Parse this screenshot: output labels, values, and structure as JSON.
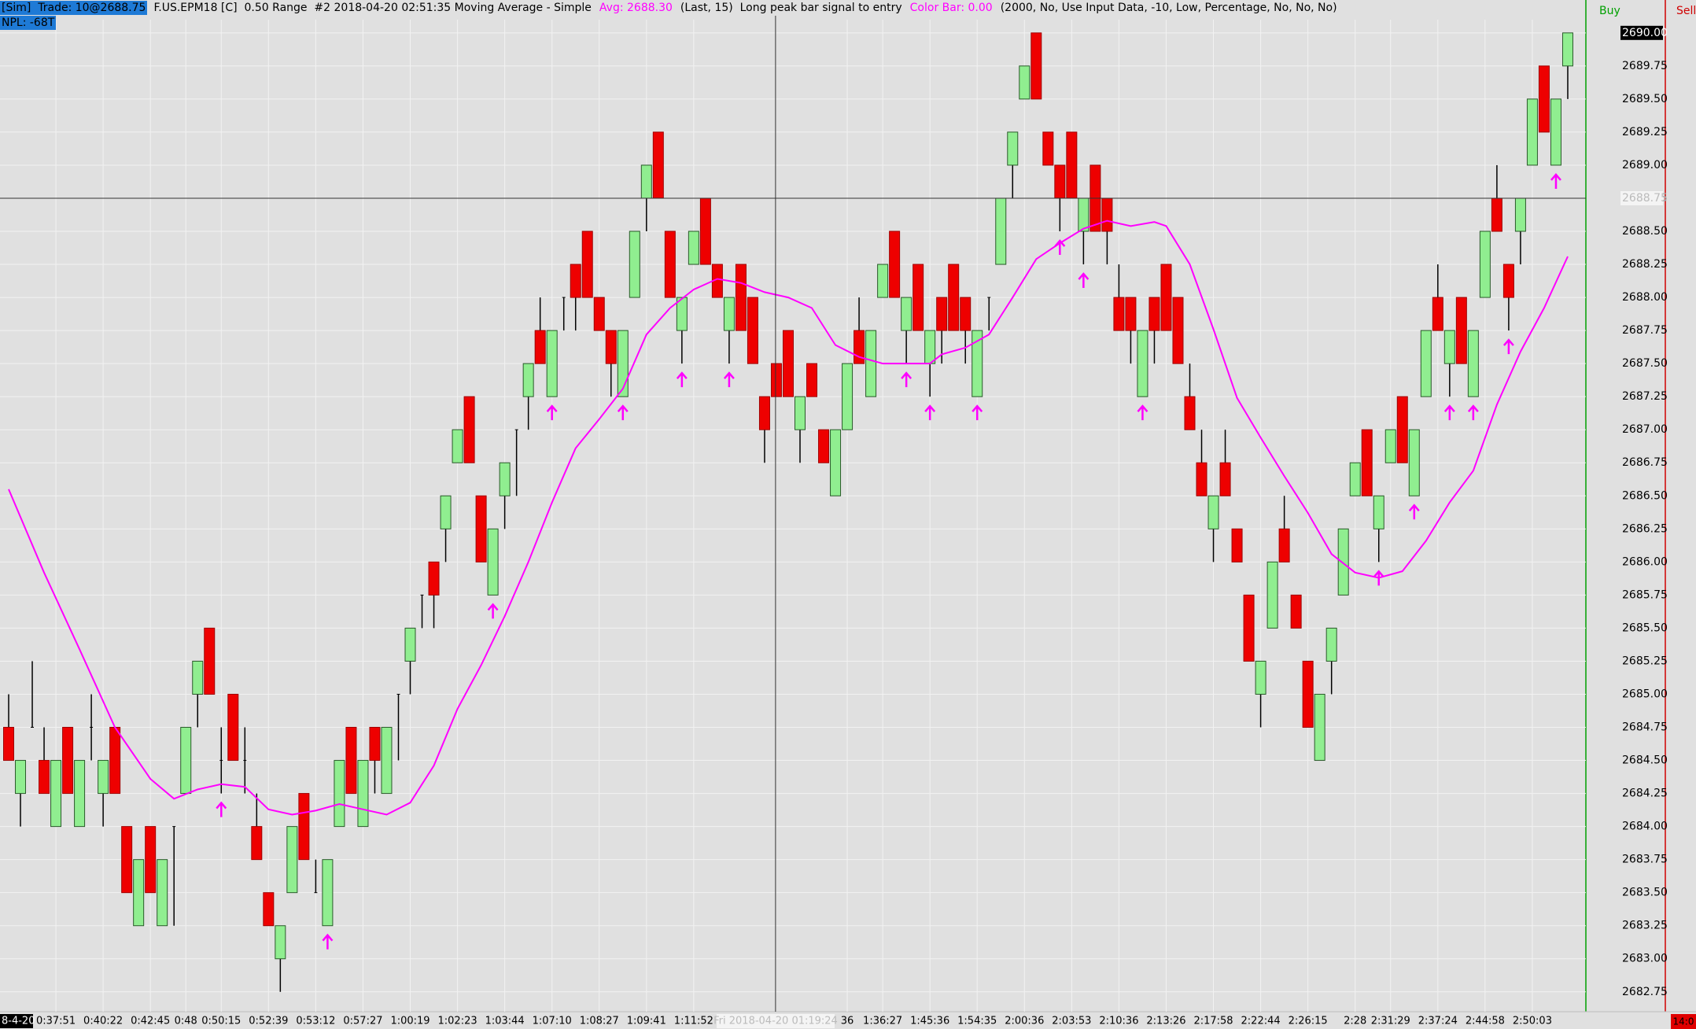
{
  "header": {
    "sim_trade": "[Sim]  Trade: 10@2688.75",
    "symbol": "F.US.EPM18 [C]  0.50 Range  #2 2018-04-20 02:51:35 Moving Average - Simple",
    "avg": "Avg: 2688.30",
    "study": "(Last, 15)  Long peak bar signal to entry",
    "color_bar": "Color Bar: 0.00",
    "params": "(2000, No, Use Input Data, -10, Low, Percentage, No, No, No)",
    "npl": "NPL: -68T",
    "buy": "Buy",
    "sell": "Sell",
    "corner": "14:0"
  },
  "chart_data": {
    "type": "candlestick",
    "ylim": [
      2682.6,
      2690.1
    ],
    "yticks": [
      {
        "value": 2690,
        "label": "2690.00"
      },
      {
        "value": 2689.75,
        "label": "2689.75"
      },
      {
        "value": 2689.5,
        "label": "2689.50"
      },
      {
        "value": 2689.25,
        "label": "2689.25"
      },
      {
        "value": 2689,
        "label": "2689.00"
      },
      {
        "value": 2688.75,
        "label": "2688.75"
      },
      {
        "value": 2688.5,
        "label": "2688.50"
      },
      {
        "value": 2688.25,
        "label": "2688.25"
      },
      {
        "value": 2688,
        "label": "2688.00"
      },
      {
        "value": 2687.75,
        "label": "2687.75"
      },
      {
        "value": 2687.5,
        "label": "2687.50"
      },
      {
        "value": 2687.25,
        "label": "2687.25"
      },
      {
        "value": 2687,
        "label": "2687.00"
      },
      {
        "value": 2686.75,
        "label": "2686.75"
      },
      {
        "value": 2686.5,
        "label": "2686.50"
      },
      {
        "value": 2686.25,
        "label": "2686.25"
      },
      {
        "value": 2686,
        "label": "2686.00"
      },
      {
        "value": 2685.75,
        "label": "2685.75"
      },
      {
        "value": 2685.5,
        "label": "2685.50"
      },
      {
        "value": 2685.25,
        "label": "2685.25"
      },
      {
        "value": 2685,
        "label": "2685.00"
      },
      {
        "value": 2684.75,
        "label": "2684.75"
      },
      {
        "value": 2684.5,
        "label": "2684.50"
      },
      {
        "value": 2684.25,
        "label": "2684.25"
      },
      {
        "value": 2684,
        "label": "2684.00"
      },
      {
        "value": 2683.75,
        "label": "2683.75"
      },
      {
        "value": 2683.5,
        "label": "2683.50"
      },
      {
        "value": 2683.25,
        "label": "2683.25"
      },
      {
        "value": 2683,
        "label": "2683.00"
      },
      {
        "value": 2682.75,
        "label": "2682.75"
      }
    ],
    "grid": true,
    "up_color": "#90ee90",
    "down_color": "#ee0000",
    "ma_color": "#ff00ff",
    "signal_color": "#ff00ff",
    "categories": [
      "8-4-20",
      null,
      null,
      null,
      "0:37:51",
      null,
      null,
      null,
      "0:40:22",
      null,
      null,
      null,
      "0:42:45",
      null,
      null,
      "0:48",
      null,
      null,
      "0:50:15",
      null,
      null,
      null,
      "0:52:39",
      null,
      null,
      null,
      "0:53:12",
      null,
      null,
      null,
      "0:57:27",
      null,
      null,
      null,
      "1:00:19",
      null,
      null,
      null,
      "1:02:23",
      null,
      null,
      null,
      "1:03:44",
      null,
      null,
      null,
      "1:07:10",
      null,
      null,
      null,
      "1:08:27",
      null,
      null,
      null,
      "1:09:41",
      null,
      null,
      null,
      "1:11:52",
      null,
      null,
      null,
      null,
      null,
      null,
      null,
      null,
      null,
      null,
      null,
      null,
      "36",
      null,
      null,
      "1:36:27",
      null,
      null,
      null,
      "1:45:36",
      null,
      null,
      null,
      "1:54:35",
      null,
      null,
      null,
      "2:00:36",
      null,
      null,
      null,
      "2:03:53",
      null,
      null,
      null,
      "2:10:36",
      null,
      null,
      null,
      "2:13:26",
      null,
      null,
      null,
      "2:17:58",
      null,
      null,
      null,
      "2:22:44",
      null,
      null,
      null,
      "2:26:15",
      null,
      null,
      null,
      "2:28",
      null,
      null,
      "2:31:29",
      null,
      null,
      null,
      "2:37:24",
      null,
      null,
      null,
      "2:44:58",
      null,
      null,
      null,
      "2:50:03",
      null,
      null,
      null
    ],
    "candles": [
      [
        2684.75,
        2685,
        2684.5,
        2684.5
      ],
      [
        2684.25,
        2684.5,
        2684,
        2684.5
      ],
      [
        2684.75,
        2685.25,
        2684.75,
        2684.75
      ],
      [
        2684.5,
        2684.75,
        2684.25,
        2684.25
      ],
      [
        2684,
        2684.5,
        2684,
        2684.5
      ],
      [
        2684.75,
        2684.75,
        2684.25,
        2684.25
      ],
      [
        2684,
        2684.5,
        2684,
        2684.5
      ],
      [
        2684.75,
        2685,
        2684.5,
        2684.75
      ],
      [
        2684.25,
        2684.5,
        2684,
        2684.5
      ],
      [
        2684.75,
        2684.75,
        2684.25,
        2684.25
      ],
      [
        2684,
        2684,
        2683.5,
        2683.5
      ],
      [
        2683.25,
        2683.75,
        2683.25,
        2683.75
      ],
      [
        2684,
        2684,
        2683.5,
        2683.5
      ],
      [
        2683.25,
        2683.75,
        2683.25,
        2683.75
      ],
      [
        2684,
        2684,
        2683.25,
        2684
      ],
      [
        2684.25,
        2684.75,
        2684.25,
        2684.75
      ],
      [
        2685,
        2685.25,
        2684.75,
        2685.25
      ],
      [
        2685.5,
        2685.5,
        2685,
        2685
      ],
      [
        2684.5,
        2684.75,
        2684.25,
        2684.5
      ],
      [
        2685,
        2685,
        2684.5,
        2684.5
      ],
      [
        2684.5,
        2684.75,
        2684.25,
        2684.5
      ],
      [
        2684,
        2684.25,
        2683.75,
        2683.75
      ],
      [
        2683.5,
        2683.5,
        2683.25,
        2683.25
      ],
      [
        2683,
        2683.25,
        2682.75,
        2683.25
      ],
      [
        2683.5,
        2684,
        2683.5,
        2684
      ],
      [
        2684.25,
        2684.25,
        2683.75,
        2683.75
      ],
      [
        2683.5,
        2683.75,
        2683.5,
        2683.5
      ],
      [
        2683.25,
        2683.75,
        2683.25,
        2683.75
      ],
      [
        2684,
        2684.5,
        2684,
        2684.5
      ],
      [
        2684.75,
        2684.75,
        2684.25,
        2684.25
      ],
      [
        2684,
        2684.5,
        2684,
        2684.5
      ],
      [
        2684.75,
        2684.75,
        2684.25,
        2684.5
      ],
      [
        2684.25,
        2684.75,
        2684.25,
        2684.75
      ],
      [
        2685,
        2685,
        2684.5,
        2685
      ],
      [
        2685.25,
        2685.5,
        2685,
        2685.5
      ],
      [
        2685.75,
        2685.75,
        2685.5,
        2685.75
      ],
      [
        2686,
        2686,
        2685.5,
        2685.75
      ],
      [
        2686.25,
        2686.5,
        2686,
        2686.5
      ],
      [
        2686.75,
        2687,
        2686.75,
        2687
      ],
      [
        2687.25,
        2687.25,
        2686.75,
        2686.75
      ],
      [
        2686.5,
        2686.5,
        2686,
        2686
      ],
      [
        2685.75,
        2686.25,
        2685.75,
        2686.25
      ],
      [
        2686.5,
        2686.75,
        2686.25,
        2686.75
      ],
      [
        2687,
        2687,
        2686.5,
        2687
      ],
      [
        2687.25,
        2687.5,
        2687,
        2687.5
      ],
      [
        2687.75,
        2688,
        2687.5,
        2687.5
      ],
      [
        2687.25,
        2687.75,
        2687.25,
        2687.75
      ],
      [
        2688,
        2688,
        2687.75,
        2688
      ],
      [
        2688.25,
        2688.25,
        2687.75,
        2688
      ],
      [
        2688.5,
        2688.5,
        2688,
        2688
      ],
      [
        2688,
        2688,
        2687.75,
        2687.75
      ],
      [
        2687.75,
        2687.75,
        2687.25,
        2687.5
      ],
      [
        2687.25,
        2687.75,
        2687.25,
        2687.75
      ],
      [
        2688,
        2688.5,
        2688,
        2688.5
      ],
      [
        2688.75,
        2689,
        2688.5,
        2689
      ],
      [
        2689.25,
        2689.25,
        2688.75,
        2688.75
      ],
      [
        2688.5,
        2688.5,
        2688,
        2688
      ],
      [
        2687.75,
        2688,
        2687.5,
        2688
      ],
      [
        2688.25,
        2688.5,
        2688.25,
        2688.5
      ],
      [
        2688.75,
        2688.75,
        2688.25,
        2688.25
      ],
      [
        2688.25,
        2688.25,
        2688,
        2688
      ],
      [
        2687.75,
        2688,
        2687.5,
        2688
      ],
      [
        2688.25,
        2688.25,
        2687.75,
        2687.75
      ],
      [
        2688,
        2688,
        2687.5,
        2687.5
      ],
      [
        2687.25,
        2687.25,
        2686.75,
        2687
      ],
      [
        2687.5,
        2687.5,
        2687.25,
        2687.25
      ],
      [
        2687.75,
        2687.75,
        2687.25,
        2687.25
      ],
      [
        2687,
        2687.25,
        2686.75,
        2687.25
      ],
      [
        2687.5,
        2687.5,
        2687.25,
        2687.25
      ],
      [
        2687,
        2687,
        2686.75,
        2686.75
      ],
      [
        2686.5,
        2687,
        2686.5,
        2687
      ],
      [
        2687,
        2687.5,
        2687,
        2687.5
      ],
      [
        2687.75,
        2688,
        2687.5,
        2687.5
      ],
      [
        2687.25,
        2687.75,
        2687.25,
        2687.75
      ],
      [
        2688,
        2688.25,
        2688,
        2688.25
      ],
      [
        2688.5,
        2688.5,
        2688,
        2688
      ],
      [
        2687.75,
        2688,
        2687.5,
        2688
      ],
      [
        2688.25,
        2688.25,
        2687.75,
        2687.75
      ],
      [
        2687.5,
        2687.75,
        2687.25,
        2687.75
      ],
      [
        2688,
        2688,
        2687.5,
        2687.75
      ],
      [
        2688.25,
        2688.25,
        2687.75,
        2687.75
      ],
      [
        2688,
        2688,
        2687.5,
        2687.75
      ],
      [
        2687.25,
        2687.75,
        2687.25,
        2687.75
      ],
      [
        2688,
        2688,
        2687.75,
        2688
      ],
      [
        2688.25,
        2688.75,
        2688.25,
        2688.75
      ],
      [
        2689,
        2689.25,
        2688.75,
        2689.25
      ],
      [
        2689.5,
        2689.75,
        2689.5,
        2689.75
      ],
      [
        2690,
        2690,
        2689.5,
        2689.5
      ],
      [
        2689.25,
        2689.25,
        2689,
        2689
      ],
      [
        2689,
        2689,
        2688.5,
        2688.75
      ],
      [
        2689.25,
        2689.25,
        2688.75,
        2688.75
      ],
      [
        2688.5,
        2688.75,
        2688.25,
        2688.75
      ],
      [
        2689,
        2689,
        2688.5,
        2688.5
      ],
      [
        2688.75,
        2688.75,
        2688.25,
        2688.5
      ],
      [
        2688,
        2688.25,
        2687.75,
        2687.75
      ],
      [
        2688,
        2688,
        2687.5,
        2687.75
      ],
      [
        2687.25,
        2687.75,
        2687.25,
        2687.75
      ],
      [
        2688,
        2688,
        2687.5,
        2687.75
      ],
      [
        2688.25,
        2688.25,
        2687.75,
        2687.75
      ],
      [
        2688,
        2688,
        2687.5,
        2687.5
      ],
      [
        2687.25,
        2687.5,
        2687,
        2687
      ],
      [
        2686.75,
        2687,
        2686.5,
        2686.5
      ],
      [
        2686.25,
        2686.5,
        2686,
        2686.5
      ],
      [
        2686.75,
        2687,
        2686.5,
        2686.5
      ],
      [
        2686.25,
        2686.25,
        2686,
        2686
      ],
      [
        2685.75,
        2685.75,
        2685.25,
        2685.25
      ],
      [
        2685,
        2685.25,
        2684.75,
        2685.25
      ],
      [
        2685.5,
        2686,
        2685.5,
        2686
      ],
      [
        2686.25,
        2686.5,
        2686,
        2686
      ],
      [
        2685.75,
        2685.75,
        2685.5,
        2685.5
      ],
      [
        2685.25,
        2685.25,
        2684.75,
        2684.75
      ],
      [
        2684.5,
        2685,
        2684.5,
        2685
      ],
      [
        2685.25,
        2685.5,
        2685,
        2685.5
      ],
      [
        2685.75,
        2686.25,
        2685.75,
        2686.25
      ],
      [
        2686.5,
        2686.75,
        2686.5,
        2686.75
      ],
      [
        2687,
        2687,
        2686.5,
        2686.5
      ],
      [
        2686.25,
        2686.5,
        2686,
        2686.5
      ],
      [
        2686.75,
        2687,
        2686.75,
        2687
      ],
      [
        2687.25,
        2687.25,
        2686.75,
        2686.75
      ],
      [
        2686.5,
        2687,
        2686.5,
        2687
      ],
      [
        2687.25,
        2687.75,
        2687.25,
        2687.75
      ],
      [
        2688,
        2688.25,
        2687.75,
        2687.75
      ],
      [
        2687.5,
        2687.75,
        2687.25,
        2687.75
      ],
      [
        2688,
        2688,
        2687.5,
        2687.5
      ],
      [
        2687.25,
        2687.75,
        2687.25,
        2687.75
      ],
      [
        2688,
        2688.5,
        2688,
        2688.5
      ],
      [
        2688.75,
        2689,
        2688.5,
        2688.5
      ],
      [
        2688.25,
        2688.25,
        2687.75,
        2688
      ],
      [
        2688.5,
        2688.75,
        2688.25,
        2688.75
      ],
      [
        2689,
        2689.5,
        2689,
        2689.5
      ],
      [
        2689.75,
        2689.75,
        2689.25,
        2689.25
      ],
      [
        2689,
        2689.5,
        2689,
        2689.5
      ],
      [
        2689.75,
        2690,
        2689.5,
        2690
      ]
    ],
    "ma_x": [
      0,
      3,
      6,
      9,
      12,
      14,
      16,
      18,
      20,
      22,
      24,
      26,
      28,
      30,
      32,
      34,
      36,
      38,
      40,
      42,
      44,
      46,
      48,
      50,
      52,
      54,
      56,
      58,
      60,
      62,
      64,
      66,
      68,
      70,
      72,
      74,
      76,
      78,
      79,
      81,
      83,
      85,
      87,
      89,
      91,
      93,
      95,
      97,
      98,
      100,
      102,
      104,
      106,
      108,
      110,
      112,
      114,
      116,
      118,
      120,
      122,
      124,
      126,
      128,
      130,
      132
    ],
    "ma": [
      2686.55,
      2685.92,
      2685.34,
      2684.75,
      2684.36,
      2684.21,
      2684.28,
      2684.32,
      2684.3,
      2684.13,
      2684.09,
      2684.12,
      2684.17,
      2684.13,
      2684.09,
      2684.18,
      2684.46,
      2684.89,
      2685.22,
      2685.59,
      2686,
      2686.45,
      2686.86,
      2687.08,
      2687.31,
      2687.72,
      2687.92,
      2688.06,
      2688.14,
      2688.11,
      2688.04,
      2688,
      2687.92,
      2687.64,
      2687.55,
      2687.5,
      2687.5,
      2687.5,
      2687.57,
      2687.62,
      2687.72,
      2688,
      2688.29,
      2688.41,
      2688.52,
      2688.58,
      2688.54,
      2688.57,
      2688.54,
      2688.25,
      2687.76,
      2687.24,
      2686.94,
      2686.65,
      2686.37,
      2686.06,
      2685.92,
      2685.88,
      2685.93,
      2686.16,
      2686.45,
      2686.69,
      2687.19,
      2687.59,
      2687.92,
      2688.31
    ],
    "signals": [
      18,
      27,
      41,
      46,
      52,
      57,
      61,
      76,
      78,
      82,
      89,
      91,
      96,
      116,
      119,
      122,
      124,
      127,
      131
    ],
    "crosshair": {
      "price": 2688.75,
      "price_label": "2688.75",
      "time_label": "Fri 2018-04-20 01:19:24"
    }
  }
}
